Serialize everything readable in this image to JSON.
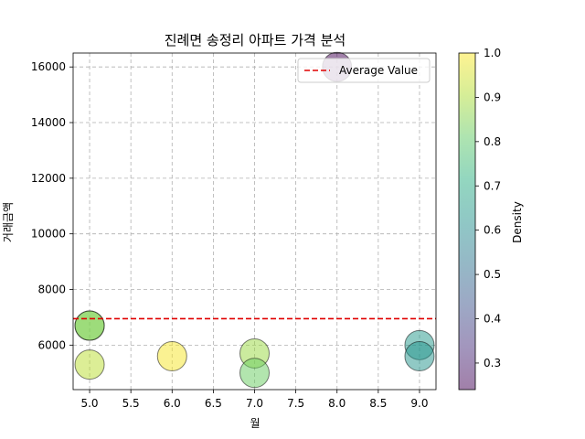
{
  "chart_data": {
    "type": "scatter",
    "title": "진례면 송정리 아파트 가격 분석",
    "xlabel": "월",
    "ylabel": "거래금액",
    "xlim": [
      4.8,
      9.2
    ],
    "ylim": [
      4400,
      16500
    ],
    "x_ticks": [
      5.0,
      5.5,
      6.0,
      6.5,
      7.0,
      7.5,
      8.0,
      8.5,
      9.0
    ],
    "y_ticks": [
      6000,
      8000,
      10000,
      12000,
      14000,
      16000
    ],
    "grid": true,
    "points": [
      {
        "x": 5,
        "y": 6700,
        "density": 0.84
      },
      {
        "x": 5,
        "y": 6700,
        "density": 0.85
      },
      {
        "x": 5,
        "y": 5300,
        "density": 0.92
      },
      {
        "x": 6,
        "y": 5600,
        "density": 0.99
      },
      {
        "x": 7,
        "y": 5700,
        "density": 0.88
      },
      {
        "x": 7,
        "y": 5000,
        "density": 0.82
      },
      {
        "x": 8,
        "y": 16000,
        "density": 0.24
      },
      {
        "x": 9,
        "y": 6000,
        "density": 0.64
      },
      {
        "x": 9,
        "y": 5600,
        "density": 0.63
      }
    ],
    "average": {
      "label": "Average Value",
      "value": 6950,
      "color": "#e00000"
    },
    "legend_position": "top-right",
    "colorbar": {
      "label": "Density",
      "colormap": "viridis",
      "range": [
        0.24,
        1.0
      ],
      "ticks": [
        0.3,
        0.4,
        0.5,
        0.6,
        0.7,
        0.8,
        0.9,
        1.0
      ],
      "point_alpha": 0.5
    }
  }
}
